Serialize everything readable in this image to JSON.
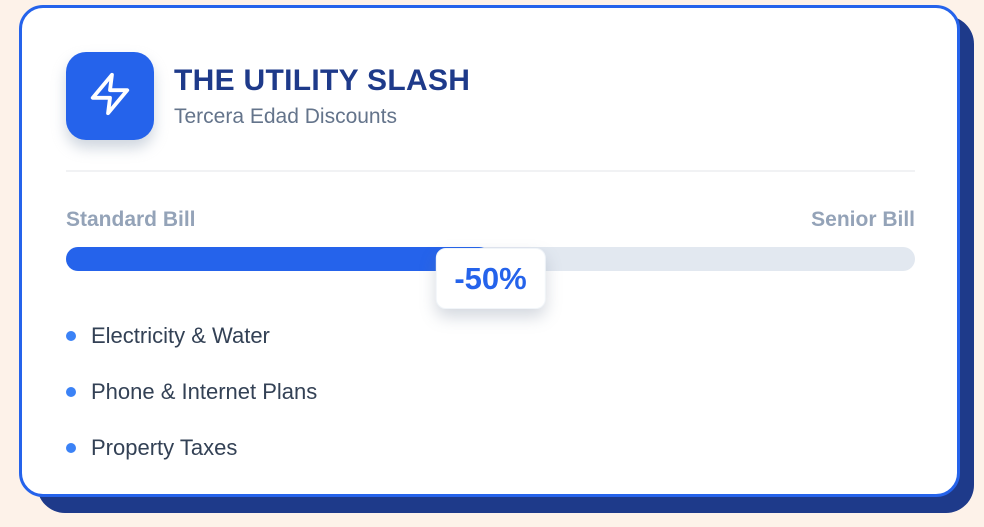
{
  "card": {
    "title": "THE UTILITY SLASH",
    "subtitle": "Tercera Edad Discounts",
    "icon": "lightning-bolt"
  },
  "slider": {
    "left_label": "Standard Bill",
    "right_label": "Senior Bill",
    "badge_text": "-50%",
    "fill_percent": 50
  },
  "benefits": [
    "Electricity & Water",
    "Phone & Internet Plans",
    "Property Taxes"
  ],
  "colors": {
    "accent": "#2563eb",
    "navy": "#1e3a8a",
    "track": "#e2e8f0",
    "bullet": "#3b82f6",
    "bg": "#fdf2e9",
    "title": "#1e3a8a",
    "subtitle": "#64748b",
    "label": "#94a3b8",
    "list-text": "#334155"
  }
}
